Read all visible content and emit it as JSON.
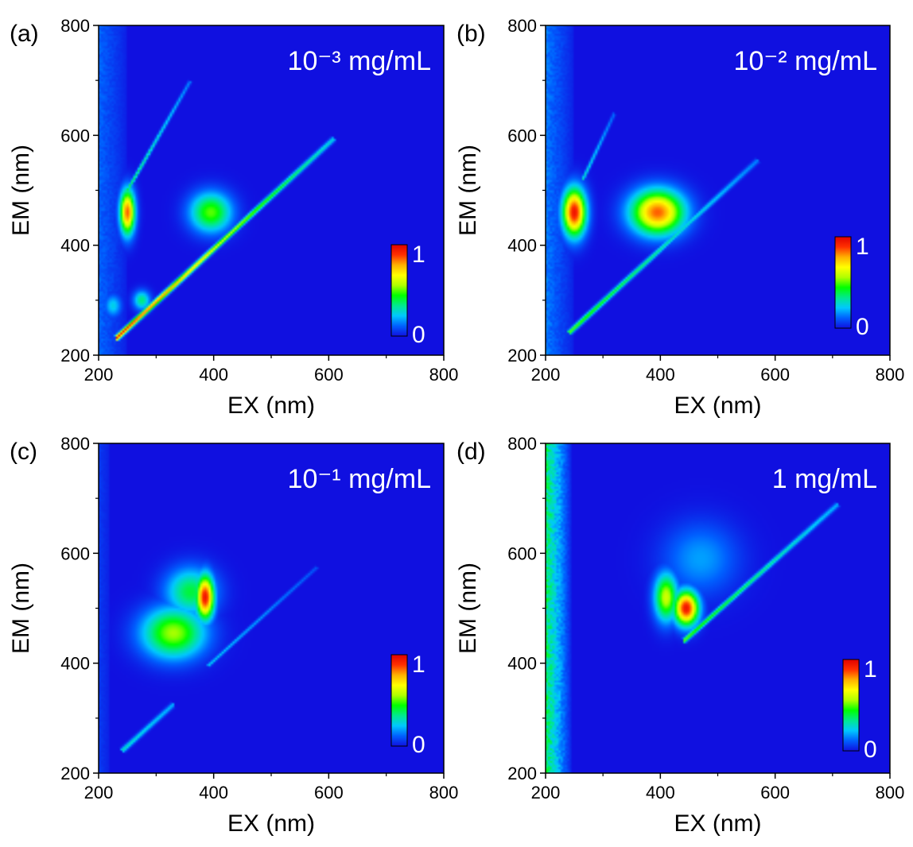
{
  "colors": {
    "background_blue": "#0a1ff0",
    "colormap": [
      "#1010e0",
      "#0060ff",
      "#00c8ff",
      "#00e890",
      "#00ff00",
      "#b0ff00",
      "#ffff00",
      "#ffb000",
      "#ff3000",
      "#e00000"
    ]
  },
  "chart_data": [
    {
      "type": "heatmap",
      "panel_label": "(a)",
      "annotation": "10⁻³ mg/mL",
      "xlabel": "EX (nm)",
      "ylabel": "EM (nm)",
      "xlim": [
        200,
        800
      ],
      "ylim": [
        200,
        800
      ],
      "xticks": [
        200,
        400,
        600,
        800
      ],
      "yticks": [
        200,
        400,
        600,
        800
      ],
      "colorbar": {
        "min_label": "0",
        "max_label": "1"
      },
      "peaks": [
        {
          "ex": 250,
          "em": 460,
          "intensity": 0.85,
          "sx": 9,
          "sy": 28
        },
        {
          "ex": 395,
          "em": 460,
          "intensity": 0.5,
          "sx": 25,
          "sy": 25
        },
        {
          "ex": 275,
          "em": 300,
          "intensity": 0.35,
          "sx": 10,
          "sy": 12
        },
        {
          "ex": 225,
          "em": 290,
          "intensity": 0.25,
          "sx": 10,
          "sy": 14
        }
      ],
      "scatter_lines": [
        {
          "from": [
            230,
            230
          ],
          "to": [
            610,
            595
          ],
          "intensity_start": 0.95,
          "intensity_end": 0.25,
          "width": 3
        },
        {
          "from": [
            250,
            500
          ],
          "to": [
            360,
            700
          ],
          "intensity_start": 0.4,
          "intensity_end": 0.15,
          "width": 2
        }
      ],
      "edge_noise": {
        "ex_max": 250,
        "intensity": 0.12
      }
    },
    {
      "type": "heatmap",
      "panel_label": "(b)",
      "annotation": "10⁻² mg/mL",
      "xlabel": "EX (nm)",
      "ylabel": "EM (nm)",
      "xlim": [
        200,
        800
      ],
      "ylim": [
        200,
        800
      ],
      "xticks": [
        200,
        400,
        600,
        800
      ],
      "yticks": [
        200,
        400,
        600,
        800
      ],
      "colorbar": {
        "min_label": "0",
        "max_label": "1"
      },
      "peaks": [
        {
          "ex": 250,
          "em": 460,
          "intensity": 0.95,
          "sx": 14,
          "sy": 30
        },
        {
          "ex": 395,
          "em": 460,
          "intensity": 0.85,
          "sx": 32,
          "sy": 28
        }
      ],
      "scatter_lines": [
        {
          "from": [
            240,
            240
          ],
          "to": [
            570,
            555
          ],
          "intensity_start": 0.5,
          "intensity_end": 0.15,
          "width": 3
        },
        {
          "from": [
            265,
            520
          ],
          "to": [
            320,
            640
          ],
          "intensity_start": 0.3,
          "intensity_end": 0.12,
          "width": 2
        }
      ],
      "edge_noise": {
        "ex_max": 250,
        "intensity": 0.15
      }
    },
    {
      "type": "heatmap",
      "panel_label": "(c)",
      "annotation": "10⁻¹ mg/mL",
      "xlabel": "EX (nm)",
      "ylabel": "EM (nm)",
      "xlim": [
        200,
        800
      ],
      "ylim": [
        200,
        800
      ],
      "xticks": [
        200,
        400,
        600,
        800
      ],
      "yticks": [
        200,
        400,
        600,
        800
      ],
      "colorbar": {
        "min_label": "0",
        "max_label": "1"
      },
      "peaks": [
        {
          "ex": 385,
          "em": 520,
          "intensity": 0.95,
          "sx": 11,
          "sy": 28
        },
        {
          "ex": 330,
          "em": 455,
          "intensity": 0.55,
          "sx": 38,
          "sy": 32
        },
        {
          "ex": 360,
          "em": 530,
          "intensity": 0.4,
          "sx": 30,
          "sy": 30
        }
      ],
      "scatter_lines": [
        {
          "from": [
            240,
            240
          ],
          "to": [
            330,
            325
          ],
          "intensity_start": 0.3,
          "intensity_end": 0.2,
          "width": 3
        },
        {
          "from": [
            390,
            395
          ],
          "to": [
            580,
            575
          ],
          "intensity_start": 0.25,
          "intensity_end": 0.1,
          "width": 2
        }
      ],
      "edge_noise": {
        "ex_max": 220,
        "intensity": 0.05
      }
    },
    {
      "type": "heatmap",
      "panel_label": "(d)",
      "annotation": "1 mg/mL",
      "xlabel": "EX (nm)",
      "ylabel": "EM (nm)",
      "xlim": [
        200,
        800
      ],
      "ylim": [
        200,
        800
      ],
      "xticks": [
        200,
        400,
        600,
        800
      ],
      "yticks": [
        200,
        400,
        600,
        800
      ],
      "colorbar": {
        "min_label": "0",
        "max_label": "1"
      },
      "peaks": [
        {
          "ex": 445,
          "em": 500,
          "intensity": 0.95,
          "sx": 15,
          "sy": 22
        },
        {
          "ex": 410,
          "em": 520,
          "intensity": 0.6,
          "sx": 14,
          "sy": 30
        },
        {
          "ex": 470,
          "em": 590,
          "intensity": 0.18,
          "sx": 45,
          "sy": 45
        }
      ],
      "scatter_lines": [
        {
          "from": [
            440,
            440
          ],
          "to": [
            710,
            690
          ],
          "intensity_start": 0.5,
          "intensity_end": 0.2,
          "width": 3
        }
      ],
      "edge_noise": {
        "ex_max": 245,
        "intensity": 0.45
      }
    }
  ]
}
